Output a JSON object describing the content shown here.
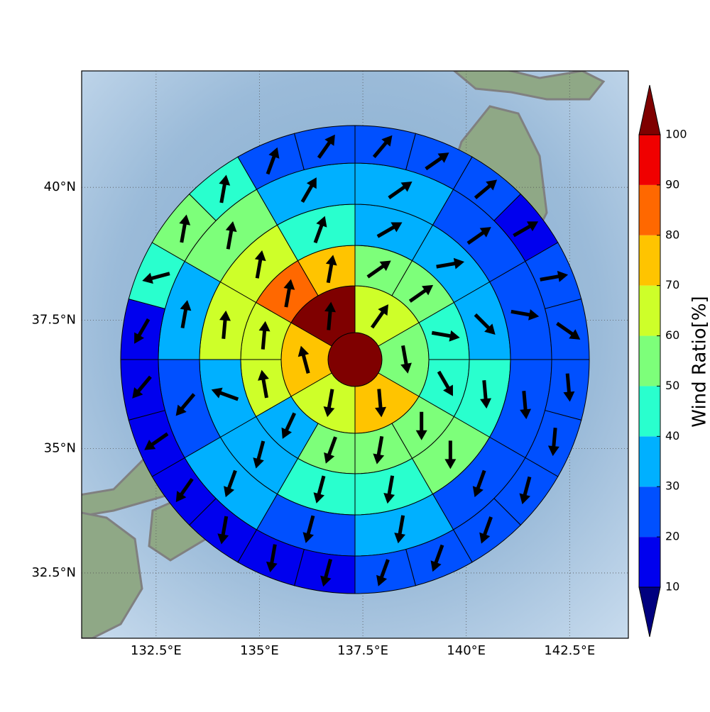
{
  "chart_data": {
    "type": "polar_sector",
    "xlim": [
      130.7,
      143.92
    ],
    "ylim": [
      31.16,
      42.12
    ],
    "xticks": [
      {
        "value": 132.5,
        "label": "132.5°E"
      },
      {
        "value": 135,
        "label": "135°E"
      },
      {
        "value": 137.5,
        "label": "137.5°E"
      },
      {
        "value": 140,
        "label": "140°E"
      },
      {
        "value": 142.5,
        "label": "142.5°E"
      }
    ],
    "yticks": [
      {
        "value": 32.5,
        "label": "32.5°N"
      },
      {
        "value": 35,
        "label": "35°N"
      },
      {
        "value": 37.5,
        "label": "37.5°N"
      },
      {
        "value": 40,
        "label": "40°N"
      }
    ],
    "grid": true,
    "colorbar": {
      "label": "Wind Ratio[%]",
      "levels": [
        10,
        20,
        30,
        40,
        50,
        60,
        70,
        80,
        90,
        100
      ],
      "colors": [
        "#00007f",
        "#0000ee",
        "#0050ff",
        "#00b0ff",
        "#29ffce",
        "#7dff7a",
        "#ceff29",
        "#ffc400",
        "#ff6800",
        "#f00000",
        "#7f0000"
      ]
    },
    "rings": [
      {
        "values": [
          100
        ]
      },
      {
        "values": [
          65,
          55,
          75,
          65,
          75,
          100
        ],
        "directions": [
          35,
          170,
          175,
          190,
          345,
          5
        ]
      },
      {
        "values": [
          55,
          55,
          45,
          45,
          55,
          55,
          55,
          35,
          65,
          65,
          85,
          75
        ],
        "directions": [
          55,
          55,
          100,
          150,
          180,
          190,
          200,
          205,
          350,
          5,
          10,
          10
        ]
      },
      {
        "values": [
          35,
          35,
          35,
          45,
          55,
          45,
          45,
          35,
          35,
          65,
          65,
          45
        ],
        "directions": [
          60,
          80,
          135,
          175,
          180,
          190,
          195,
          195,
          290,
          5,
          10,
          20
        ]
      },
      {
        "values": [
          35,
          25,
          25,
          25,
          25,
          35,
          25,
          35,
          25,
          35,
          55,
          35
        ],
        "directions": [
          55,
          55,
          100,
          175,
          200,
          190,
          195,
          200,
          220,
          10,
          10,
          30
        ]
      },
      {
        "values": [
          25,
          25,
          25,
          15,
          25,
          25,
          25,
          25,
          25,
          25,
          25,
          25,
          15,
          15,
          15,
          15,
          15,
          15,
          15,
          45,
          55,
          45,
          25,
          25
        ],
        "directions": [
          40,
          55,
          50,
          60,
          80,
          125,
          175,
          185,
          195,
          200,
          200,
          200,
          195,
          190,
          190,
          215,
          235,
          220,
          210,
          255,
          10,
          10,
          20,
          35
        ]
      }
    ]
  }
}
